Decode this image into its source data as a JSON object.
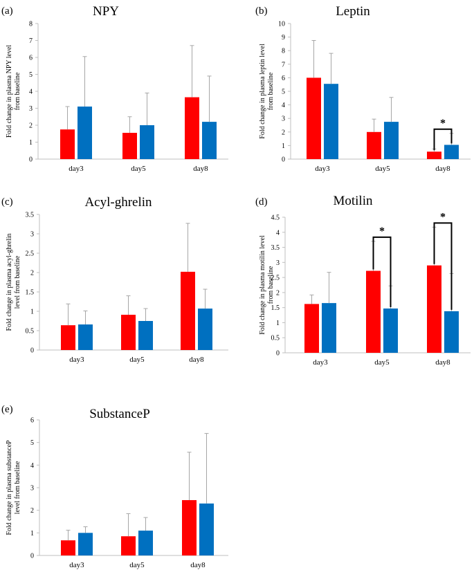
{
  "colors": {
    "series1": "#ff0000",
    "series2": "#0070c0",
    "error": "#a6a6a6",
    "axis": "#bfbfbf"
  },
  "chart_data": [
    {
      "panel": "(a)",
      "title": "NPY",
      "type": "bar",
      "ylabel": [
        "Fold change in plasma NPY level",
        "from baseline"
      ],
      "categories": [
        "day3",
        "day5",
        "day8"
      ],
      "ylim": [
        0,
        8
      ],
      "ystep": 1,
      "decimals": 0,
      "series": [
        {
          "color": "#ff0000",
          "values": [
            1.75,
            1.55,
            3.65
          ],
          "errors": [
            1.35,
            0.95,
            3.05
          ]
        },
        {
          "color": "#0070c0",
          "values": [
            3.1,
            2.0,
            2.2
          ],
          "errors": [
            2.95,
            1.9,
            2.7
          ]
        }
      ],
      "significance": []
    },
    {
      "panel": "(b)",
      "title": "Leptin",
      "type": "bar",
      "ylabel": [
        "Fold change in plasma leptin level",
        "from baseline"
      ],
      "categories": [
        "day3",
        "day5",
        "day8"
      ],
      "ylim": [
        0,
        10
      ],
      "ystep": 1,
      "decimals": 0,
      "series": [
        {
          "color": "#ff0000",
          "values": [
            6.0,
            2.0,
            0.55
          ],
          "errors": [
            2.75,
            0.95,
            0.2
          ]
        },
        {
          "color": "#0070c0",
          "values": [
            5.55,
            2.75,
            1.05
          ],
          "errors": [
            2.25,
            1.8,
            0.85
          ]
        }
      ],
      "significance": [
        {
          "category": 2,
          "label": "*"
        }
      ]
    },
    {
      "panel": "(c)",
      "title": "Acyl-ghrelin",
      "type": "bar",
      "ylabel": [
        "Fold change in plasma acyl-ghrelin",
        "level from baseline"
      ],
      "categories": [
        "day3",
        "day5",
        "day8"
      ],
      "ylim": [
        0,
        3.5
      ],
      "ystep": 0.5,
      "decimals": 1,
      "series": [
        {
          "color": "#ff0000",
          "values": [
            0.64,
            0.91,
            2.02
          ],
          "errors": [
            0.55,
            0.49,
            1.25
          ]
        },
        {
          "color": "#0070c0",
          "values": [
            0.66,
            0.75,
            1.07
          ],
          "errors": [
            0.35,
            0.32,
            0.5
          ]
        }
      ],
      "significance": []
    },
    {
      "panel": "(d)",
      "title": "Motilin",
      "type": "bar",
      "ylabel": [
        "Fold change in plasma motilin level",
        "from baseline"
      ],
      "categories": [
        "day3",
        "day5",
        "day8"
      ],
      "ylim": [
        0,
        4.5
      ],
      "ystep": 0.5,
      "decimals": 1,
      "series": [
        {
          "color": "#ff0000",
          "values": [
            1.62,
            2.72,
            2.9
          ],
          "errors": [
            0.3,
            0.98,
            1.27
          ]
        },
        {
          "color": "#0070c0",
          "values": [
            1.65,
            1.47,
            1.38
          ],
          "errors": [
            1.02,
            0.75,
            1.25
          ]
        }
      ],
      "significance": [
        {
          "category": 1,
          "label": "*"
        },
        {
          "category": 2,
          "label": "*"
        }
      ]
    },
    {
      "panel": "(e)",
      "title": "SubstanceP",
      "type": "bar",
      "ylabel": [
        "Fold change in plasma substanceP",
        "level from baseline"
      ],
      "categories": [
        "day3",
        "day5",
        "day8"
      ],
      "ylim": [
        0,
        6
      ],
      "ystep": 1,
      "decimals": 0,
      "series": [
        {
          "color": "#ff0000",
          "values": [
            0.67,
            0.85,
            2.45
          ],
          "errors": [
            0.45,
            1.0,
            2.12
          ]
        },
        {
          "color": "#0070c0",
          "values": [
            1.0,
            1.1,
            2.3
          ],
          "errors": [
            0.27,
            0.58,
            3.1
          ]
        }
      ],
      "significance": []
    }
  ]
}
